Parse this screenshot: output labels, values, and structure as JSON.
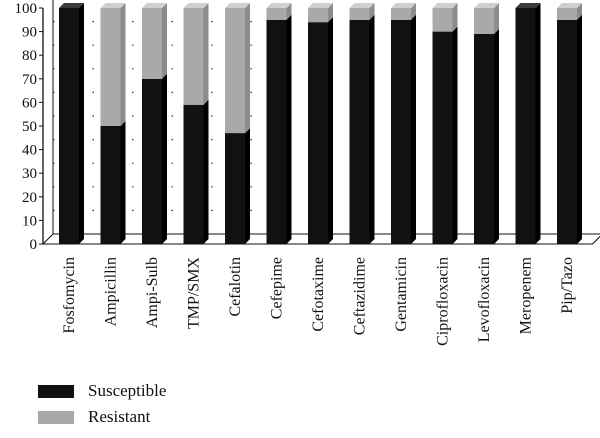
{
  "colors": {
    "susceptible": "#111111",
    "susceptible_top": "#3a3a3a",
    "susceptible_side": "#000000",
    "resistant": "#a9a9a9",
    "resistant_top": "#cfcfcf",
    "resistant_side": "#8c8c8c"
  },
  "chart_data": {
    "type": "bar",
    "stacked": true,
    "three_d": true,
    "title": "",
    "xlabel": "",
    "ylabel": "",
    "ylim": [
      0,
      100
    ],
    "yticks": [
      0,
      10,
      20,
      30,
      40,
      50,
      60,
      70,
      80,
      90,
      100
    ],
    "grid": true,
    "legend_position": "bottom-left",
    "categories": [
      "Fosfomycin",
      "Ampicillin",
      "Ampi-Sulb",
      "TMP/SMX",
      "Cefalotin",
      "Cefepime",
      "Cefotaxime",
      "Ceftazidime",
      "Gentamicin",
      "Ciprofloxacin",
      "Levofloxacin",
      "Meropenem",
      "Pip/Tazo"
    ],
    "series": [
      {
        "name": "Susceptible",
        "values": [
          100,
          50,
          70,
          59,
          47,
          95,
          94,
          95,
          95,
          90,
          89,
          100,
          95
        ]
      },
      {
        "name": "Resistant",
        "values": [
          0,
          50,
          30,
          41,
          53,
          5,
          6,
          5,
          5,
          10,
          11,
          0,
          5
        ]
      }
    ]
  }
}
